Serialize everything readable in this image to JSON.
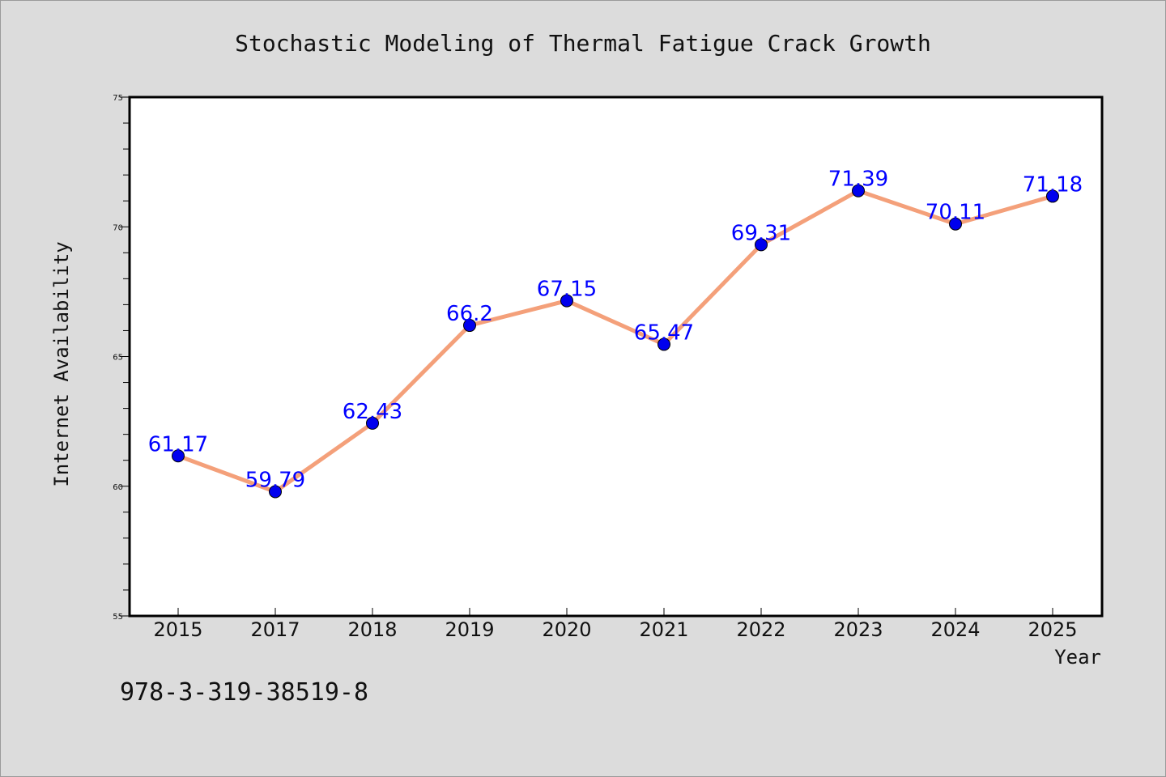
{
  "chart_data": {
    "type": "line",
    "title": "Stochastic Modeling of Thermal Fatigue Crack Growth",
    "xlabel": "Year",
    "ylabel": "Internet Availability",
    "categories": [
      "2015",
      "2017",
      "2018",
      "2019",
      "2020",
      "2021",
      "2022",
      "2023",
      "2024",
      "2025"
    ],
    "series": [
      {
        "values": [
          61.17,
          59.79,
          62.43,
          66.2,
          67.15,
          65.47,
          69.31,
          71.39,
          70.11,
          71.18
        ],
        "labels": [
          "61.17",
          "59.79",
          "62.43",
          "66.2",
          "67.15",
          "65.47",
          "69.31",
          "71.39",
          "70.11",
          "71.18"
        ],
        "line_color": "#f4a07a",
        "marker_color": "#0000ee",
        "label_color": "#0000ff"
      }
    ],
    "ylim": [
      55,
      75
    ],
    "yticks": [
      "55",
      "60",
      "65",
      "70",
      "75"
    ],
    "grid": false,
    "legend": "none"
  },
  "footnote": "978-3-319-38519-8"
}
